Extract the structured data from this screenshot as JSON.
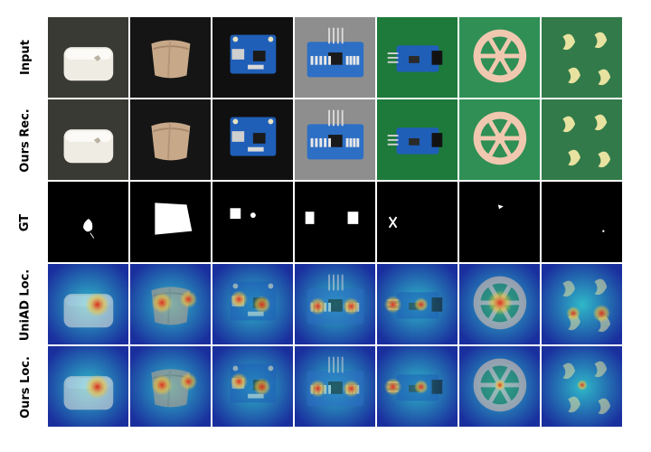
{
  "figure": {
    "rows": [
      {
        "label": "Input",
        "kind": "photo"
      },
      {
        "label": "Ours Rec.",
        "kind": "photo"
      },
      {
        "label": "GT",
        "kind": "mask"
      },
      {
        "label": "UniAD Loc.",
        "kind": "heatmap"
      },
      {
        "label": "Ours Loc.",
        "kind": "heatmap"
      }
    ],
    "columns": [
      {
        "object": "soap-bar",
        "background": "#3a3a34"
      },
      {
        "object": "pasta-tube",
        "background": "#151515"
      },
      {
        "object": "circuit-board-usb",
        "background": "#101010"
      },
      {
        "object": "circuit-board-pins",
        "background": "#8e8e8e"
      },
      {
        "object": "circuit-board-ir",
        "background": "#1d7a3b"
      },
      {
        "object": "wheel-pasta",
        "background": "#2f8f55"
      },
      {
        "object": "macaroni",
        "background": "#327a4a"
      }
    ],
    "colors": {
      "heatmap_low": "#1a2f9e",
      "heatmap_mid": "#2fb8c8",
      "heatmap_high": "#e0281c",
      "mask_bg": "#000000",
      "mask_fg": "#ffffff"
    }
  }
}
